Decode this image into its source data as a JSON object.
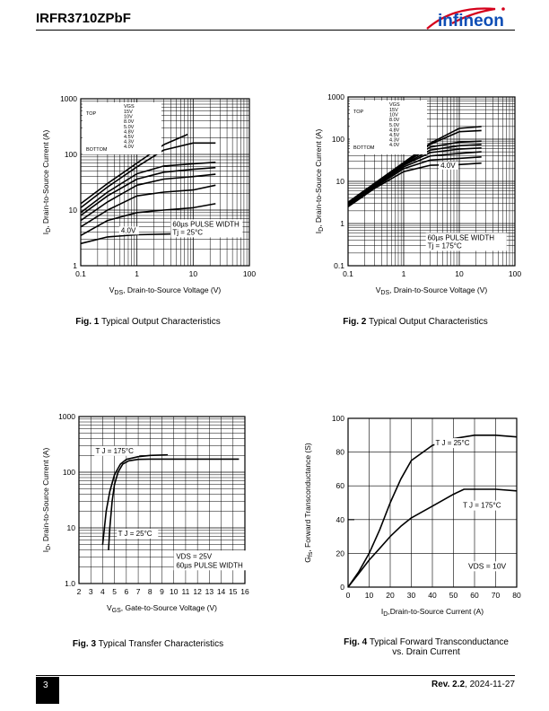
{
  "header": {
    "title": "IRFR3710ZPbF",
    "logo_text": "infineon",
    "brand_color": "#d5001b",
    "logo_icon": "infineon-logo-icon"
  },
  "footer": {
    "page": "3",
    "rev_label": "Rev. 2.2",
    "rev_date": ", 2024-11-27"
  },
  "captions": [
    {
      "num": "Fig. 1",
      "text": " Typical Output Characteristics"
    },
    {
      "num": "Fig. 2",
      "text": " Typical Output Characteristics"
    },
    {
      "num": "Fig. 3",
      "text": " Typical Transfer Characteristics"
    },
    {
      "num": "Fig. 4",
      "text": " Typical Forward Transconductance",
      "text2": "vs. Drain Current"
    }
  ],
  "chart_data": [
    {
      "type": "line",
      "xscale": "log",
      "yscale": "log",
      "xlim": [
        0.1,
        100
      ],
      "ylim": [
        1,
        1000
      ],
      "xticks": [
        "0.1",
        "1",
        "10",
        "100"
      ],
      "yticks": [
        "1",
        "10",
        "100",
        "1000"
      ],
      "xlabel_main": "V",
      "xlabel_sub": "DS",
      "xlabel_rest": ", Drain-to-Source Voltage (V)",
      "ylabel_main": "I",
      "ylabel_sub": "D",
      "ylabel_rest": ", Drain-to-Source Current (A)",
      "legend_header": "VGS",
      "legend_top": "TOP",
      "legend_bottom": "BOTTOM",
      "legend_values": [
        "15V",
        "10V",
        "8.0V",
        "5.0V",
        "4.8V",
        "4.5V",
        "4.3V",
        "4.0V"
      ],
      "annotation_curve": "4.0V",
      "note_line1": "60µs PULSE WIDTH",
      "note_line2_main": "Tj = 25°C",
      "grid": true,
      "series": [
        {
          "name": "15V",
          "x": [
            0.1,
            0.3,
            1,
            3,
            8
          ],
          "y": [
            13,
            30,
            70,
            150,
            230
          ]
        },
        {
          "name": "10V",
          "x": [
            0.1,
            0.3,
            1,
            3,
            10,
            25
          ],
          "y": [
            11,
            26,
            60,
            120,
            160,
            160
          ]
        },
        {
          "name": "8.0V",
          "x": [
            0.1,
            0.3,
            1,
            3,
            10,
            25
          ],
          "y": [
            9,
            21,
            45,
            62,
            68,
            72
          ]
        },
        {
          "name": "5.0V",
          "x": [
            0.1,
            0.3,
            1,
            3,
            10,
            25
          ],
          "y": [
            8,
            18,
            36,
            48,
            54,
            58
          ]
        },
        {
          "name": "4.8V",
          "x": [
            0.1,
            0.3,
            1,
            3,
            10,
            25
          ],
          "y": [
            6.5,
            14,
            28,
            36,
            40,
            44
          ]
        },
        {
          "name": "4.5V",
          "x": [
            0.1,
            0.3,
            1,
            3,
            10,
            25
          ],
          "y": [
            5,
            10,
            18,
            21,
            23,
            28
          ]
        },
        {
          "name": "4.3V",
          "x": [
            0.1,
            0.3,
            1,
            3,
            10,
            25
          ],
          "y": [
            3.5,
            6.5,
            9,
            10,
            11,
            13
          ]
        },
        {
          "name": "4.0V",
          "x": [
            0.1,
            0.3,
            1,
            3,
            10,
            25
          ],
          "y": [
            2.5,
            3.3,
            3.6,
            3.7,
            3.8,
            4.2
          ]
        }
      ]
    },
    {
      "type": "line",
      "xscale": "log",
      "yscale": "log",
      "xlim": [
        0.1,
        100
      ],
      "ylim": [
        0.1,
        1000
      ],
      "xticks": [
        "0.1",
        "1",
        "10",
        "100"
      ],
      "yticks": [
        "0.1",
        "1",
        "10",
        "100",
        "1000"
      ],
      "xlabel_main": "V",
      "xlabel_sub": "DS",
      "xlabel_rest": ", Drain-to-Source Voltage (V)",
      "ylabel_main": "I",
      "ylabel_sub": "D",
      "ylabel_rest": ", Drain-to-Source Current (A)",
      "legend_header": "VGS",
      "legend_top": "TOP",
      "legend_bottom": "BOTTOM",
      "legend_values": [
        "15V",
        "10V",
        "8.0V",
        "5.0V",
        "4.8V",
        "4.5V",
        "4.3V",
        "4.0V"
      ],
      "annotation_curve": "4.0V",
      "note_line1": "60µs PULSE WIDTH",
      "note_line2_main": "Tj = 175°C",
      "grid": true,
      "series": [
        {
          "name": "15V",
          "x": [
            0.1,
            0.3,
            1,
            3,
            10,
            25
          ],
          "y": [
            3.2,
            9,
            28,
            80,
            180,
            200
          ]
        },
        {
          "name": "10V",
          "x": [
            0.1,
            0.3,
            1,
            3,
            10,
            25
          ],
          "y": [
            3.1,
            8.8,
            27,
            75,
            150,
            160
          ]
        },
        {
          "name": "8.0V",
          "x": [
            0.1,
            0.3,
            1,
            3,
            10,
            25
          ],
          "y": [
            3,
            8.5,
            26,
            65,
            85,
            90
          ]
        },
        {
          "name": "5.0V",
          "x": [
            0.1,
            0.3,
            1,
            3,
            10,
            25
          ],
          "y": [
            2.9,
            8.2,
            25,
            55,
            70,
            75
          ]
        },
        {
          "name": "4.8V",
          "x": [
            0.1,
            0.3,
            1,
            3,
            10,
            25
          ],
          "y": [
            2.8,
            8,
            24,
            48,
            58,
            62
          ]
        },
        {
          "name": "4.5V",
          "x": [
            0.1,
            0.3,
            1,
            3,
            10,
            25
          ],
          "y": [
            2.7,
            7.6,
            22,
            40,
            46,
            50
          ]
        },
        {
          "name": "4.3V",
          "x": [
            0.1,
            0.3,
            1,
            3,
            10,
            25
          ],
          "y": [
            2.6,
            7.2,
            20,
            32,
            35,
            38
          ]
        },
        {
          "name": "4.0V",
          "x": [
            0.1,
            0.3,
            1,
            3,
            10,
            25
          ],
          "y": [
            2.5,
            6.8,
            17,
            24,
            25,
            27
          ]
        }
      ]
    },
    {
      "type": "line",
      "xscale": "linear",
      "yscale": "log",
      "xlim": [
        2,
        16
      ],
      "ylim": [
        1,
        1000
      ],
      "xticks": [
        "2",
        "3",
        "4",
        "5",
        "6",
        "7",
        "8",
        "9",
        "10",
        "11",
        "12",
        "13",
        "14",
        "15",
        "16"
      ],
      "yticks": [
        "1.0",
        "10",
        "100",
        "1000"
      ],
      "xlabel_main": "V",
      "xlabel_sub": "GS",
      "xlabel_rest": ", Gate-to-Source Voltage (V)",
      "ylabel_main": "I",
      "ylabel_sub": "D",
      "ylabel_rest": ", Drain-to-Source Current (A)",
      "label_t175": "T J = 175°C",
      "label_t25": "T J = 25°C",
      "note_line1": "VDS = 25V",
      "note_line2": "60µs PULSE WIDTH",
      "grid": true,
      "series": [
        {
          "name": "T J = 175°C",
          "x": [
            4,
            4.3,
            4.6,
            5,
            5.5,
            6,
            7,
            8,
            9.5
          ],
          "y": [
            5,
            20,
            45,
            90,
            140,
            170,
            190,
            200,
            205
          ]
        },
        {
          "name": "T J = 25°C",
          "x": [
            4.5,
            4.6,
            4.8,
            5,
            5.3,
            5.7,
            6.2,
            7,
            8,
            10,
            15.5
          ],
          "y": [
            4,
            10,
            30,
            60,
            100,
            140,
            160,
            170,
            172,
            172,
            172
          ]
        }
      ]
    },
    {
      "type": "line",
      "xscale": "linear",
      "yscale": "linear",
      "xlim": [
        0,
        80
      ],
      "ylim": [
        0,
        100
      ],
      "xticks": [
        "0",
        "10",
        "20",
        "30",
        "40",
        "50",
        "60",
        "70",
        "80"
      ],
      "yticks": [
        "0",
        "20",
        "40",
        "60",
        "80",
        "100"
      ],
      "xlabel_main": "I",
      "xlabel_sub": "D",
      "xlabel_rest": ",Drain-to-Source Current (A)",
      "ylabel_main": "G",
      "ylabel_sub": "fs",
      "ylabel_rest": ", Forward Transconductance (S)",
      "label_t25": "T J = 25°C",
      "label_t175": "T J = 175°C",
      "note": "VDS = 10V",
      "grid": true,
      "series": [
        {
          "name": "T J = 25°C",
          "x": [
            0,
            5,
            10,
            15,
            20,
            25,
            30,
            40,
            50,
            60,
            70,
            80
          ],
          "y": [
            0,
            9,
            20,
            34,
            50,
            64,
            75,
            84,
            88,
            90,
            90,
            89
          ]
        },
        {
          "name": "T J = 175°C",
          "x": [
            0,
            5,
            10,
            15,
            20,
            25,
            30,
            40,
            50,
            55,
            60,
            70,
            80
          ],
          "y": [
            0,
            8,
            16,
            23,
            30,
            36,
            41,
            48,
            55,
            58,
            58,
            58,
            57
          ]
        }
      ]
    }
  ]
}
